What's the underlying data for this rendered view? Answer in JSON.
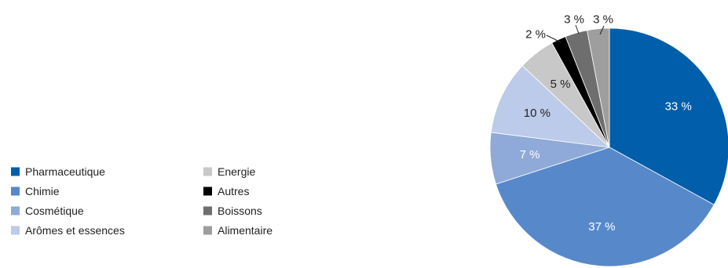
{
  "chart_data": {
    "type": "pie",
    "title": "",
    "start_angle_deg": 0,
    "direction": "clockwise",
    "slices": [
      {
        "label": "Pharmaceutique",
        "value": 33,
        "display": "33 %",
        "color": "#005EAA",
        "label_color": "#ffffff",
        "label_position": "inside"
      },
      {
        "label": "Chimie",
        "value": 37,
        "display": "37 %",
        "color": "#5789CA",
        "label_color": "#ffffff",
        "label_position": "inside"
      },
      {
        "label": "Cosmétique",
        "value": 7,
        "display": "7 %",
        "color": "#8FA9D8",
        "label_color": "#ffffff",
        "label_position": "inside"
      },
      {
        "label": "Arômes et essences",
        "value": 10,
        "display": "10 %",
        "color": "#BCCBE9",
        "label_color": "#222222",
        "label_position": "inside"
      },
      {
        "label": "Energie",
        "value": 5,
        "display": "5 %",
        "color": "#C8C8C8",
        "label_color": "#222222",
        "label_position": "inside"
      },
      {
        "label": "Autres",
        "value": 2,
        "display": "2 %",
        "color": "#000000",
        "label_color": "#222222",
        "label_position": "outside"
      },
      {
        "label": "Boissons",
        "value": 3,
        "display": "3 %",
        "color": "#6E6E6E",
        "label_color": "#222222",
        "label_position": "outside"
      },
      {
        "label": "Alimentaire",
        "value": 3,
        "display": "3 %",
        "color": "#9E9E9E",
        "label_color": "#222222",
        "label_position": "outside"
      }
    ],
    "legend": {
      "placement": "left",
      "columns": [
        [
          "Pharmaceutique",
          "Chimie",
          "Cosmétique",
          "Arômes et essences"
        ],
        [
          "Energie",
          "Autres",
          "Boissons",
          "Alimentaire"
        ]
      ]
    }
  }
}
